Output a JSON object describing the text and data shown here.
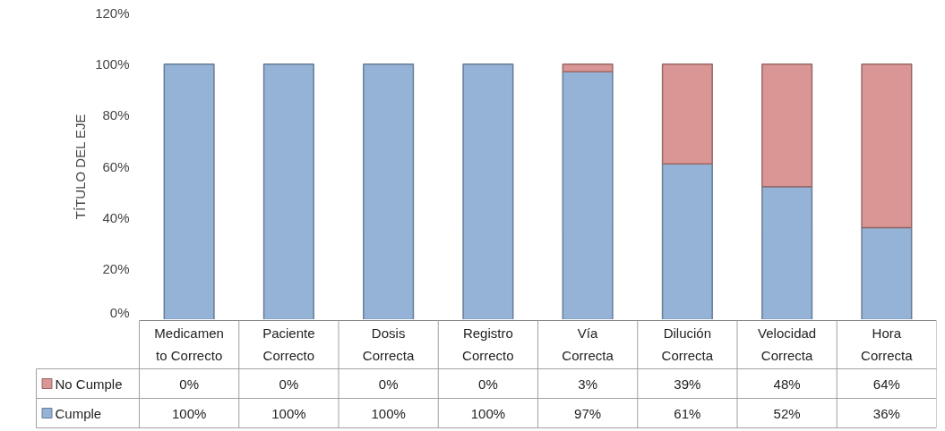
{
  "chart_data": {
    "type": "bar",
    "stacked": true,
    "ylabel": "TÍTULO DEL EJE",
    "categories": [
      "Medicamento Correcto",
      "Paciente Correcto",
      "Dosis Correcta",
      "Registro Correcto",
      "Vía Correcta",
      "Dilución Correcta",
      "Velocidad Correcta",
      "Hora Correcta"
    ],
    "series": [
      {
        "name": "Cumple",
        "color": "#95b3d7",
        "values": [
          100,
          100,
          100,
          100,
          97,
          61,
          52,
          36
        ],
        "value_labels": [
          "100%",
          "100%",
          "100%",
          "100%",
          "97%",
          "61%",
          "52%",
          "36%"
        ]
      },
      {
        "name": "No Cumple",
        "color": "#d99694",
        "values": [
          0,
          0,
          0,
          0,
          3,
          39,
          48,
          64
        ],
        "value_labels": [
          "0%",
          "0%",
          "0%",
          "0%",
          "3%",
          "39%",
          "48%",
          "64%"
        ]
      }
    ],
    "ylim": [
      0,
      120
    ],
    "yticks": [
      {
        "value": 0,
        "label": "0%"
      },
      {
        "value": 20,
        "label": "20%"
      },
      {
        "value": 40,
        "label": "40%"
      },
      {
        "value": 60,
        "label": "60%"
      },
      {
        "value": 80,
        "label": "80%"
      },
      {
        "value": 100,
        "label": "100%"
      },
      {
        "value": 120,
        "label": "120%"
      }
    ],
    "legend": "bottom"
  }
}
